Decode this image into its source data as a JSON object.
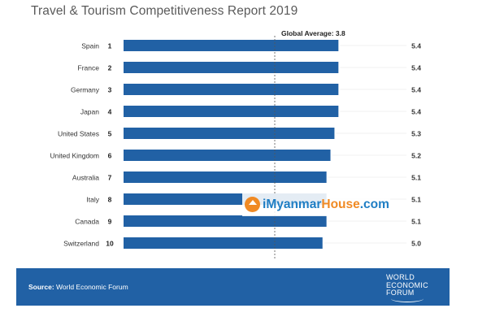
{
  "header": {
    "title": "Travel & Tourism Competitiveness Report 2019"
  },
  "chart_data": {
    "type": "bar",
    "orientation": "horizontal",
    "categories": [
      "Spain",
      "France",
      "Germany",
      "Japan",
      "United States",
      "United Kingdom",
      "Australia",
      "Italy",
      "Canada",
      "Switzerland"
    ],
    "ranks": [
      "1",
      "2",
      "3",
      "4",
      "5",
      "6",
      "7",
      "8",
      "9",
      "10"
    ],
    "values": [
      5.4,
      5.4,
      5.4,
      5.4,
      5.3,
      5.2,
      5.1,
      5.1,
      5.1,
      5.0
    ],
    "value_labels": [
      "5.4",
      "5.4",
      "5.4",
      "5.4",
      "5.3",
      "5.2",
      "5.1",
      "5.1",
      "5.1",
      "5.0"
    ],
    "reference_line": {
      "label": "Global Average: 3.8",
      "value": 3.8,
      "style": "dashed"
    },
    "bar_color": "#2161a5",
    "grid": false,
    "legend": "none"
  },
  "footer": {
    "source_label": "Source:",
    "source_text": "World Economic Forum",
    "logo_line1": "WORLD",
    "logo_line2": "ECONOMIC",
    "logo_line3": "FORUM",
    "background": "#2161a5"
  },
  "watermark": {
    "text_part1": "i",
    "text_part2": "Myanmar",
    "text_part3": "House",
    "text_part4": ".com"
  }
}
